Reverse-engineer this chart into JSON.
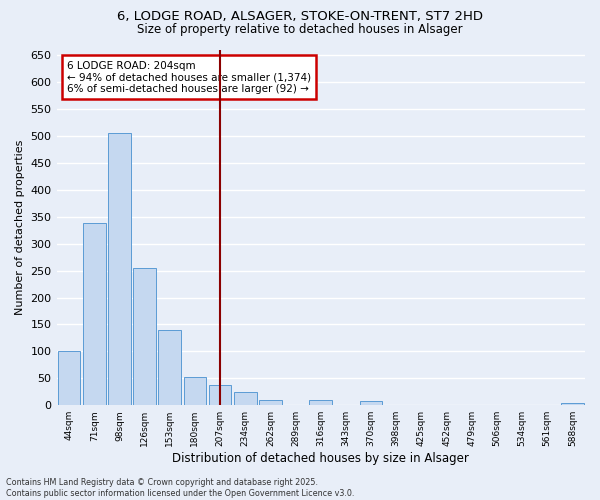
{
  "title_line1": "6, LODGE ROAD, ALSAGER, STOKE-ON-TRENT, ST7 2HD",
  "title_line2": "Size of property relative to detached houses in Alsager",
  "xlabel": "Distribution of detached houses by size in Alsager",
  "ylabel": "Number of detached properties",
  "categories": [
    "44sqm",
    "71sqm",
    "98sqm",
    "126sqm",
    "153sqm",
    "180sqm",
    "207sqm",
    "234sqm",
    "262sqm",
    "289sqm",
    "316sqm",
    "343sqm",
    "370sqm",
    "398sqm",
    "425sqm",
    "452sqm",
    "479sqm",
    "506sqm",
    "534sqm",
    "561sqm",
    "588sqm"
  ],
  "values": [
    100,
    338,
    505,
    255,
    140,
    53,
    37,
    24,
    10,
    0,
    10,
    0,
    7,
    0,
    0,
    0,
    0,
    0,
    0,
    0,
    5
  ],
  "bar_color": "#c5d8f0",
  "bar_edge_color": "#5b9bd5",
  "highlight_index": 6,
  "highlight_line_color": "#8b0000",
  "annotation_text": "6 LODGE ROAD: 204sqm\n← 94% of detached houses are smaller (1,374)\n6% of semi-detached houses are larger (92) →",
  "annotation_box_color": "#ffffff",
  "annotation_box_edge_color": "#cc0000",
  "ylim": [
    0,
    660
  ],
  "yticks": [
    0,
    50,
    100,
    150,
    200,
    250,
    300,
    350,
    400,
    450,
    500,
    550,
    600,
    650
  ],
  "background_color": "#e8eef8",
  "grid_color": "#ffffff",
  "footer_line1": "Contains HM Land Registry data © Crown copyright and database right 2025.",
  "footer_line2": "Contains public sector information licensed under the Open Government Licence v3.0."
}
